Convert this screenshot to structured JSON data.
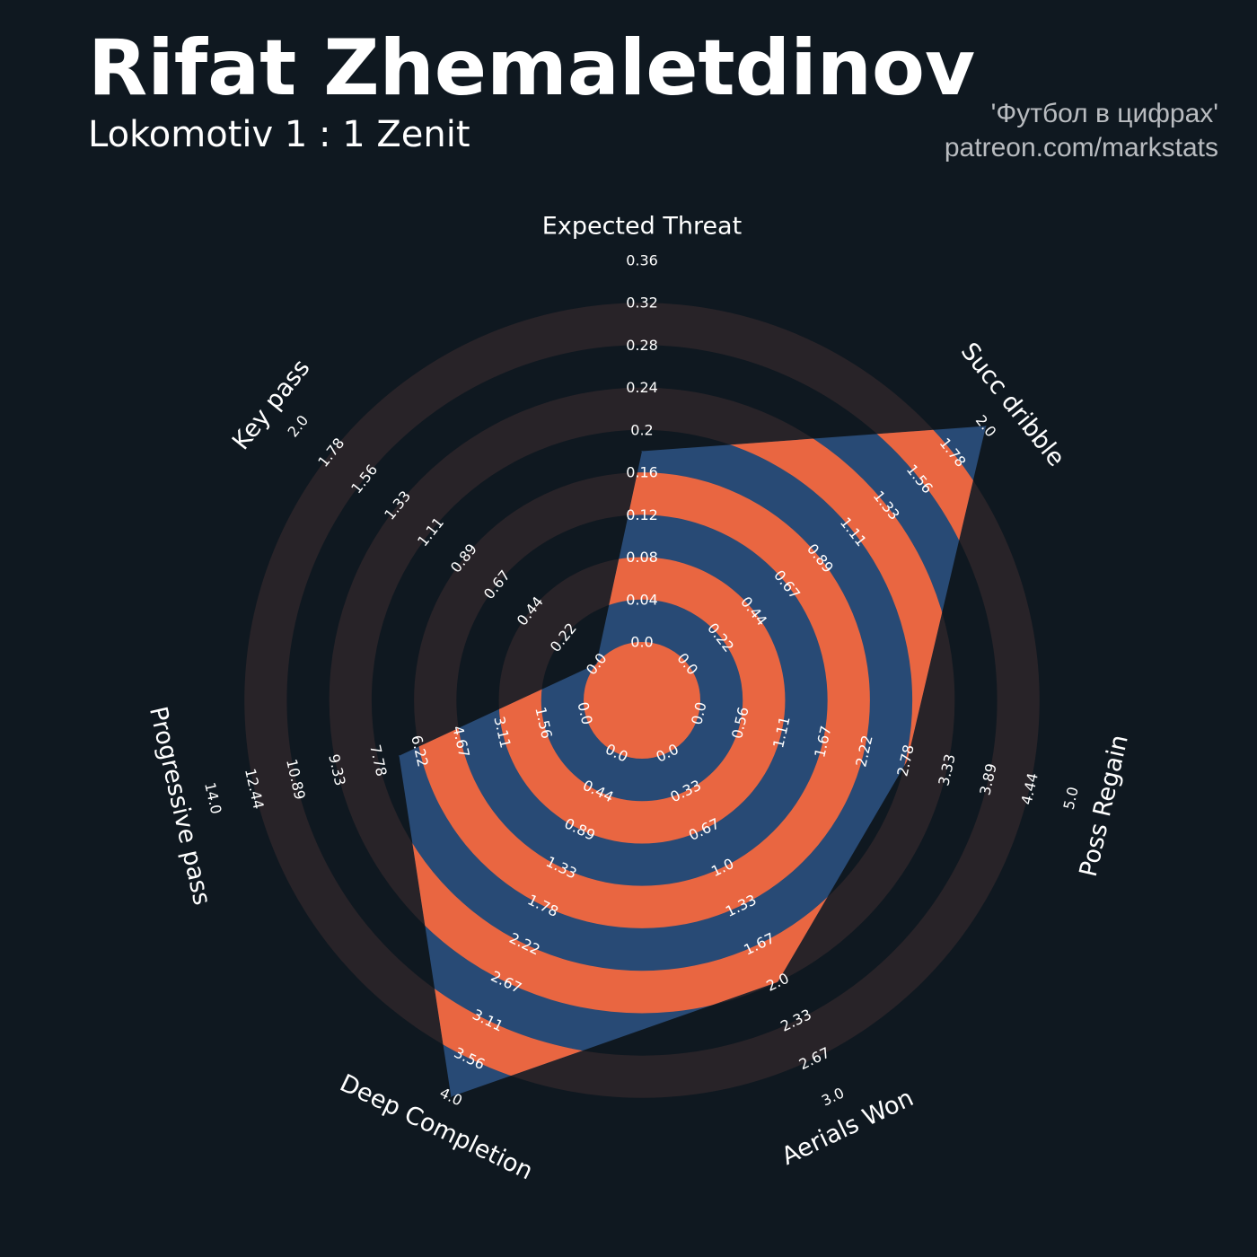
{
  "header": {
    "player_name": "Rifat Zhemaletdinov",
    "match": "Lokomotiv 1 : 1 Zenit",
    "credit_line1": "'Футбол в цифрах'",
    "credit_line2": "patreon.com/markstats"
  },
  "colors": {
    "background": "#0f1820",
    "ring": "#282328",
    "polygon": "#284a75",
    "polygon_ring": "#e96641",
    "text": "#ffffff",
    "credit": "#b9bcc0"
  },
  "chart_data": {
    "type": "radar",
    "axes": [
      {
        "name": "Expected Threat",
        "value": 0.18,
        "ticks": [
          "0.0",
          "0.04",
          "0.08",
          "0.12",
          "0.16",
          "0.2",
          "0.24",
          "0.28",
          "0.32",
          "0.36"
        ]
      },
      {
        "name": "Succ dribble",
        "value": 2.0,
        "ticks": [
          "0.0",
          "0.22",
          "0.44",
          "0.67",
          "0.89",
          "1.11",
          "1.33",
          "1.56",
          "1.78",
          "2.0"
        ]
      },
      {
        "name": "Poss Regain",
        "value": 2.8,
        "ticks": [
          "0.0",
          "0.56",
          "1.11",
          "1.67",
          "2.22",
          "2.78",
          "3.33",
          "3.89",
          "4.44",
          "5.0"
        ]
      },
      {
        "name": "Aerials Won",
        "value": 2.0,
        "ticks": [
          "0.0",
          "0.33",
          "0.67",
          "1.0",
          "1.33",
          "1.67",
          "2.0",
          "2.33",
          "2.67",
          "3.0"
        ]
      },
      {
        "name": "Deep Completion",
        "value": 4.0,
        "ticks": [
          "0.0",
          "0.44",
          "0.89",
          "1.33",
          "1.78",
          "2.22",
          "2.67",
          "3.11",
          "3.56",
          "4.0"
        ]
      },
      {
        "name": "Progressive pass",
        "value": 7.0,
        "ticks": [
          "0.0",
          "1.56",
          "3.11",
          "4.67",
          "6.22",
          "7.78",
          "9.33",
          "10.89",
          "12.44",
          "14.0"
        ]
      },
      {
        "name": "Key pass",
        "value": 0.0,
        "ticks": [
          "0.0",
          "0.22",
          "0.44",
          "0.67",
          "0.89",
          "1.11",
          "1.33",
          "1.56",
          "1.78",
          "2.0"
        ]
      }
    ]
  }
}
